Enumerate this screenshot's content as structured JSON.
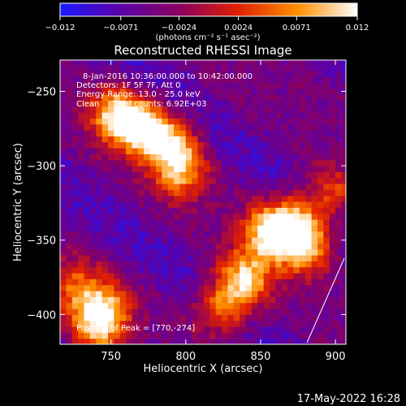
{
  "chart_data": {
    "type": "heatmap",
    "title": "Reconstructed RHESSI Image",
    "xlabel": "Heliocentric X (arcsec)",
    "ylabel": "Heliocentric Y (arcsec)",
    "xlim": [
      716,
      907
    ],
    "ylim": [
      -420,
      -229
    ],
    "x_ticks": [
      750,
      800,
      850,
      900
    ],
    "y_ticks": [
      -250,
      -300,
      -350,
      -400
    ],
    "x_tick_labels": [
      "750",
      "800",
      "850",
      "900"
    ],
    "y_tick_labels": [
      "−250",
      "−300",
      "−350",
      "−400"
    ],
    "colorbar": {
      "range": [
        -0.012,
        0.012
      ],
      "tick_values": [
        -0.012,
        -0.0071,
        -0.0024,
        0.0024,
        0.0071,
        0.012
      ],
      "tick_labels": [
        "−0.012",
        "−0.0071",
        "−0.0024",
        "0.0024",
        "0.0071",
        "0.012"
      ],
      "unit": "(photons cm⁻² s⁻¹ asec⁻²)",
      "colors": [
        "#1a1aff",
        "#5a00a8",
        "#8a0060",
        "#e02000",
        "#ff9000",
        "#ffffff"
      ]
    },
    "annotations": {
      "date_line": "8-Jan-2016 10:36:00.000 to 10:42:00.000",
      "detectors_line": "Detectors: 1F 5F 7F, Att 0",
      "energy_line": "Energy Range: 13.0 - 25.0 keV",
      "clean_line": "Clean     Total counts: 6.92E+03",
      "peak_line": "Position of Peak = [770,-274]"
    },
    "peak": {
      "x": 770,
      "y": -274
    },
    "bright_regions": [
      {
        "x": 770,
        "y": -274,
        "intensity": 0.012
      },
      {
        "x": 753,
        "y": -265,
        "intensity": 0.0095
      },
      {
        "x": 790,
        "y": -285,
        "intensity": 0.008
      },
      {
        "x": 796,
        "y": -305,
        "intensity": 0.0075
      },
      {
        "x": 855,
        "y": -345,
        "intensity": 0.01
      },
      {
        "x": 872,
        "y": -338,
        "intensity": 0.009
      },
      {
        "x": 880,
        "y": -355,
        "intensity": 0.009
      },
      {
        "x": 840,
        "y": -375,
        "intensity": 0.009
      },
      {
        "x": 825,
        "y": -395,
        "intensity": 0.0085
      },
      {
        "x": 745,
        "y": -395,
        "intensity": 0.008
      },
      {
        "x": 740,
        "y": -410,
        "intensity": 0.0065
      },
      {
        "x": 725,
        "y": -380,
        "intensity": 0.004
      },
      {
        "x": 896,
        "y": -318,
        "intensity": 0.0045
      }
    ]
  },
  "timestamp": "17-May-2022 16:28"
}
